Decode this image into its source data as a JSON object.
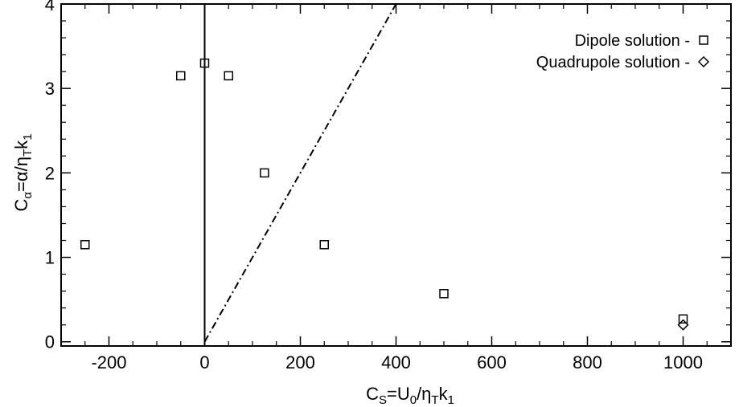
{
  "chart_data": {
    "type": "scatter",
    "xlabel": {
      "main": "C",
      "sub1": "S",
      "mid": "=U",
      "sub2": "0",
      "mid2": "/η",
      "sub3": "T",
      "mid3": "k",
      "sub4": "1"
    },
    "ylabel": {
      "main": "C",
      "sub1": "α",
      "mid": "=α/η",
      "sub2": "T",
      "mid2": "k",
      "sub3": "1"
    },
    "xlim": [
      -300,
      1100
    ],
    "ylim": [
      -0.05,
      4.0
    ],
    "x_ticks": [
      -200,
      0,
      200,
      400,
      600,
      800,
      1000
    ],
    "x_tick_labels": [
      "-200",
      "0",
      "200",
      "400",
      "600",
      "800",
      "1000"
    ],
    "y_ticks": [
      0,
      1,
      2,
      3,
      4
    ],
    "y_tick_labels": [
      "0",
      "1",
      "2",
      "3",
      "4"
    ],
    "x_minor_step": 50,
    "y_minor_step": 0.2,
    "series": [
      {
        "name": "Dipole solution -",
        "marker": "square",
        "points": [
          {
            "x": -250,
            "y": 1.15
          },
          {
            "x": -50,
            "y": 3.15
          },
          {
            "x": 0,
            "y": 3.3
          },
          {
            "x": 50,
            "y": 3.15
          },
          {
            "x": 125,
            "y": 2.0
          },
          {
            "x": 250,
            "y": 1.15
          },
          {
            "x": 500,
            "y": 0.57
          },
          {
            "x": 1000,
            "y": 0.27
          }
        ]
      },
      {
        "name": "Quadrupole solution -",
        "marker": "diamond",
        "points": [
          {
            "x": 1000,
            "y": 0.2
          }
        ]
      }
    ],
    "reference_lines": [
      {
        "style": "solid",
        "x1": 0,
        "y1": -0.05,
        "x2": 0,
        "y2": 4.0
      },
      {
        "style": "dash-dot",
        "x1": 0,
        "y1": 0,
        "x2": 400,
        "y2": 4.0
      }
    ],
    "legend_position": "top-right"
  }
}
